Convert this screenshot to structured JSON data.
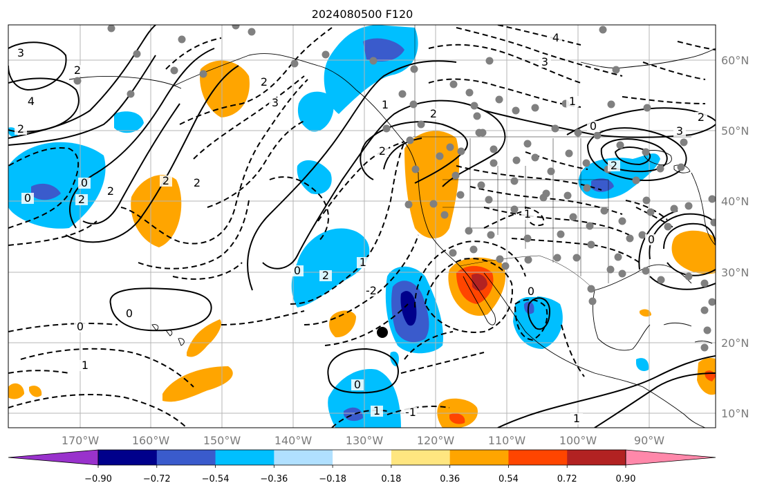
{
  "title": "2024080500 F120",
  "map": {
    "lon_labels": [
      "170°W",
      "160°W",
      "150°W",
      "140°W",
      "130°W",
      "120°W",
      "110°W",
      "100°W",
      "90°W"
    ],
    "lat_labels": [
      "60°N",
      "50°N",
      "40°N",
      "30°N",
      "20°N",
      "10°N"
    ]
  },
  "colorbar": {
    "colors": [
      "#9932cc",
      "#00008b",
      "#3a5bcc",
      "#00bfff",
      "#b0e0ff",
      "#ffffff",
      "#ffe680",
      "#ffa500",
      "#ff4500",
      "#b22222",
      "#ff88aa"
    ],
    "tick_labels": [
      "−0.90",
      "−0.72",
      "−0.54",
      "−0.36",
      "−0.18",
      "0.18",
      "0.36",
      "0.54",
      "0.72",
      "0.90"
    ]
  },
  "contour_labels": [
    {
      "text": "3"
    },
    {
      "text": "2"
    },
    {
      "text": "4"
    },
    {
      "text": "2"
    },
    {
      "text": "2"
    },
    {
      "text": "0"
    },
    {
      "text": "2"
    },
    {
      "text": "2"
    },
    {
      "text": "0"
    },
    {
      "text": "2"
    },
    {
      "text": "3"
    },
    {
      "text": "2"
    },
    {
      "text": "2"
    },
    {
      "text": "1"
    },
    {
      "text": "2"
    },
    {
      "text": "1"
    },
    {
      "text": "0"
    },
    {
      "text": "2"
    },
    {
      "text": "0"
    },
    {
      "text": "1"
    },
    {
      "text": "0"
    },
    {
      "text": "1"
    },
    {
      "text": "0"
    },
    {
      "text": "-1"
    },
    {
      "text": "4"
    },
    {
      "text": "3"
    },
    {
      "text": "1"
    },
    {
      "text": "0"
    },
    {
      "text": "3"
    },
    {
      "text": "2"
    },
    {
      "text": "2"
    },
    {
      "text": "0"
    },
    {
      "text": "0"
    },
    {
      "text": "1"
    },
    {
      "text": "-2"
    },
    {
      "text": "1"
    }
  ]
}
